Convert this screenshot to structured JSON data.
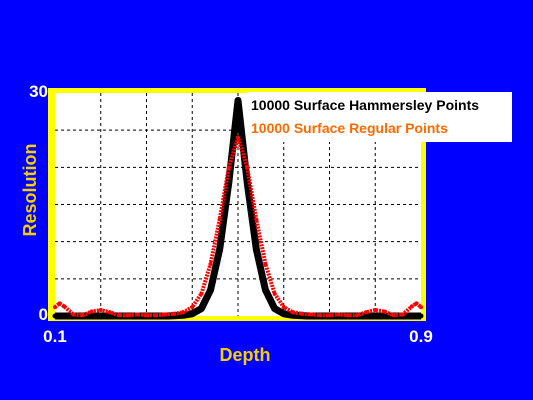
{
  "colors": {
    "background": "#0000ff",
    "frame": "#ffff00",
    "plot_bg": "#ffffff",
    "grid": "#000000",
    "series_hammersley": "#000000",
    "series_regular": "#ff0000",
    "legend_regular_text": "#ff6a00",
    "axis_label": "#f5d000",
    "tick_label": "#ffffff"
  },
  "chart_data": {
    "type": "line",
    "title": "",
    "xlabel": "Depth",
    "ylabel": "Resolution",
    "xlim": [
      0.1,
      0.9
    ],
    "ylim": [
      0,
      30
    ],
    "grid": true,
    "legend_position": "top-right",
    "x_tick_labels": [
      "0.1",
      "0.9"
    ],
    "y_tick_labels": [
      "0",
      "30"
    ],
    "series": [
      {
        "name": "10000 Surface Hammersley Points",
        "color": "#000000",
        "x": [
          0.1,
          0.2,
          0.3,
          0.35,
          0.38,
          0.4,
          0.42,
          0.44,
          0.46,
          0.48,
          0.5,
          0.52,
          0.54,
          0.56,
          0.58,
          0.6,
          0.62,
          0.65,
          0.7,
          0.8,
          0.9
        ],
        "y": [
          0,
          0,
          0,
          0,
          0.1,
          0.3,
          1.0,
          3.5,
          9.0,
          18.0,
          29.0,
          18.0,
          9.0,
          3.5,
          1.0,
          0.3,
          0.1,
          0,
          0,
          0,
          0
        ]
      },
      {
        "name": "10000 Surface Regular Points",
        "color": "#ff0000",
        "x": [
          0.1,
          0.11,
          0.12,
          0.14,
          0.16,
          0.18,
          0.2,
          0.22,
          0.24,
          0.26,
          0.28,
          0.3,
          0.32,
          0.34,
          0.36,
          0.38,
          0.4,
          0.42,
          0.44,
          0.46,
          0.48,
          0.5,
          0.52,
          0.54,
          0.56,
          0.58,
          0.6,
          0.62,
          0.64,
          0.66,
          0.68,
          0.7,
          0.72,
          0.74,
          0.76,
          0.78,
          0.8,
          0.82,
          0.84,
          0.86,
          0.88,
          0.89,
          0.9
        ],
        "y": [
          1.2,
          1.7,
          1.3,
          0.2,
          0.1,
          0.6,
          0.8,
          0.5,
          0.1,
          0.1,
          0.2,
          0.1,
          0.1,
          0.2,
          0.3,
          0.5,
          1.2,
          3.0,
          7.0,
          13.0,
          20.0,
          24.0,
          20.0,
          13.0,
          7.0,
          3.0,
          1.2,
          0.5,
          0.3,
          0.2,
          0.1,
          0.1,
          0.2,
          0.1,
          0.1,
          0.5,
          0.8,
          0.6,
          0.1,
          0.2,
          1.3,
          1.7,
          1.2
        ]
      }
    ]
  }
}
